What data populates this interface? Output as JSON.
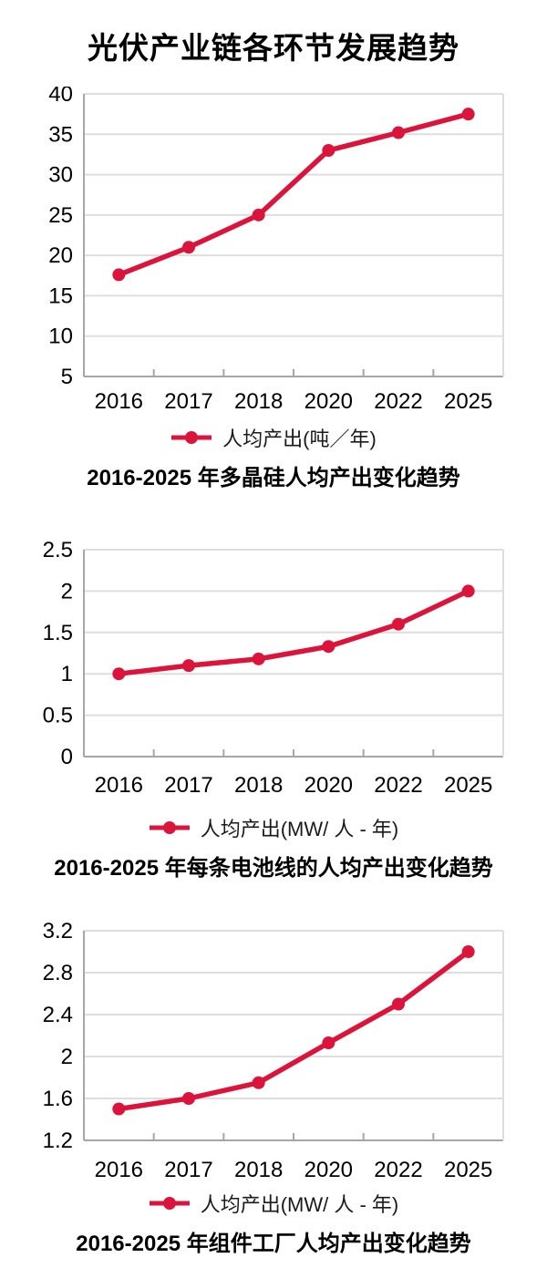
{
  "page_title": "光伏产业链各环节发展趋势",
  "colors": {
    "line": "#DC143C",
    "grid": "#DEDEDE",
    "axis": "#A6A6A6",
    "text": "#000000",
    "background": "#FFFFFF"
  },
  "chart_data": [
    {
      "type": "line",
      "title": "",
      "categories": [
        "2016",
        "2017",
        "2018",
        "2020",
        "2022",
        "2025"
      ],
      "series": [
        {
          "name": "人均产出(吨／年)",
          "values": [
            17.6,
            21,
            25,
            33,
            35.2,
            37.5
          ]
        }
      ],
      "legend_label": "人均产出(吨／年)",
      "caption": "2016-2025 年多晶硅人均产出变化趋势",
      "ylim": [
        5,
        40
      ],
      "ytick_values": [
        5,
        10,
        15,
        20,
        25,
        30,
        35,
        40
      ],
      "ytick_labels": [
        "5",
        "10",
        "15",
        "20",
        "25",
        "30",
        "35",
        "40"
      ],
      "xlabel": "",
      "ylabel": "",
      "grid": true,
      "legend_position": "bottom",
      "marker": "circle"
    },
    {
      "type": "line",
      "title": "",
      "categories": [
        "2016",
        "2017",
        "2018",
        "2020",
        "2022",
        "2025"
      ],
      "series": [
        {
          "name": "人均产出(MW/ 人 - 年)",
          "values": [
            1.0,
            1.1,
            1.18,
            1.33,
            1.6,
            2.0
          ]
        }
      ],
      "legend_label": "人均产出(MW/ 人 - 年)",
      "caption": "2016-2025 年每条电池线的人均产出变化趋势",
      "ylim": [
        0,
        2.5
      ],
      "ytick_values": [
        0,
        0.5,
        1,
        1.5,
        2,
        2.5
      ],
      "ytick_labels": [
        "0",
        "0.5",
        "1",
        "1.5",
        "2",
        "2.5"
      ],
      "xlabel": "",
      "ylabel": "",
      "grid": true,
      "legend_position": "bottom",
      "marker": "circle"
    },
    {
      "type": "line",
      "title": "",
      "categories": [
        "2016",
        "2017",
        "2018",
        "2020",
        "2022",
        "2025"
      ],
      "series": [
        {
          "name": "人均产出(MW/ 人 - 年)",
          "values": [
            1.5,
            1.6,
            1.75,
            2.13,
            2.5,
            3.0
          ]
        }
      ],
      "legend_label": "人均产出(MW/ 人 - 年)",
      "caption": "2016-2025 年组件工厂人均产出变化趋势",
      "ylim": [
        1.2,
        3.2
      ],
      "ytick_values": [
        1.2,
        1.6,
        2,
        2.4,
        2.8,
        3.2
      ],
      "ytick_labels": [
        "1.2",
        "1.6",
        "2",
        "2.4",
        "2.8",
        "3.2"
      ],
      "xlabel": "",
      "ylabel": "",
      "grid": true,
      "legend_position": "bottom",
      "marker": "circle"
    }
  ]
}
